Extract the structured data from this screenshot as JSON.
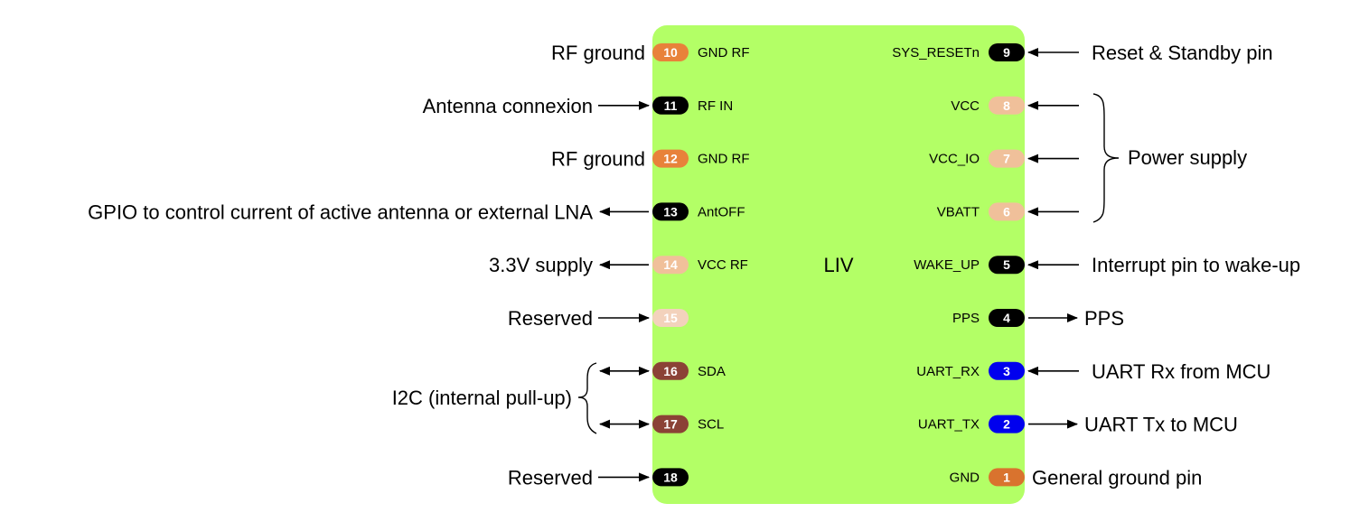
{
  "chip": {
    "name": "LIV",
    "body_color": "#b3ff66"
  },
  "colors": {
    "black": "#000000",
    "orange": "#e8823a",
    "peach": "#f0c09a",
    "lightpeach": "#f3d2bc",
    "brown": "#8b4236",
    "blue": "#0000ee",
    "darkorange": "#d9732e"
  },
  "left_pins": [
    {
      "num": "10",
      "name": "GND RF",
      "color": "orange",
      "desc": "RF ground",
      "arrow": "none"
    },
    {
      "num": "11",
      "name": "RF IN",
      "color": "black",
      "desc": "Antenna connexion",
      "arrow": "in"
    },
    {
      "num": "12",
      "name": "GND RF",
      "color": "orange",
      "desc": "RF ground",
      "arrow": "none"
    },
    {
      "num": "13",
      "name": "AntOFF",
      "color": "black",
      "desc": "GPIO to control current of active antenna or external LNA",
      "arrow": "out"
    },
    {
      "num": "14",
      "name": "VCC RF",
      "color": "peach",
      "desc": "3.3V supply",
      "arrow": "out"
    },
    {
      "num": "15",
      "name": "",
      "color": "lightpeach",
      "desc": "Reserved",
      "arrow": "in"
    },
    {
      "num": "16",
      "name": "SDA",
      "color": "brown",
      "desc": "",
      "arrow": "both"
    },
    {
      "num": "17",
      "name": "SCL",
      "color": "brown",
      "desc": "",
      "arrow": "both"
    },
    {
      "num": "18",
      "name": "",
      "color": "black",
      "desc": "Reserved",
      "arrow": "in"
    }
  ],
  "right_pins": [
    {
      "num": "9",
      "name": "SYS_RESETn",
      "color": "black",
      "desc": "Reset & Standby pin",
      "arrow": "in"
    },
    {
      "num": "8",
      "name": "VCC",
      "color": "peach",
      "desc": "",
      "arrow": "in"
    },
    {
      "num": "7",
      "name": "VCC_IO",
      "color": "peach",
      "desc": "",
      "arrow": "in"
    },
    {
      "num": "6",
      "name": "VBATT",
      "color": "peach",
      "desc": "",
      "arrow": "in"
    },
    {
      "num": "5",
      "name": "WAKE_UP",
      "color": "black",
      "desc": "Interrupt pin to wake-up",
      "arrow": "in"
    },
    {
      "num": "4",
      "name": "PPS",
      "color": "black",
      "desc": "PPS",
      "arrow": "out"
    },
    {
      "num": "3",
      "name": "UART_RX",
      "color": "blue",
      "desc": "UART Rx from MCU",
      "arrow": "in"
    },
    {
      "num": "2",
      "name": "UART_TX",
      "color": "blue",
      "desc": "UART Tx to MCU",
      "arrow": "out"
    },
    {
      "num": "1",
      "name": "GND",
      "color": "darkorange",
      "desc": "General ground pin",
      "arrow": "none"
    }
  ],
  "groups": {
    "power_supply": "Power supply",
    "i2c": "I2C (internal pull-up)"
  }
}
